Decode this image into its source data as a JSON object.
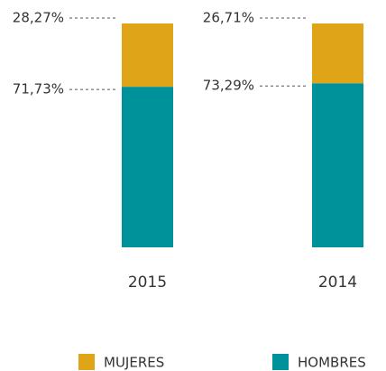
{
  "chart_data": {
    "type": "bar",
    "stacked": true,
    "categories": [
      "2015",
      "2014"
    ],
    "series": [
      {
        "name": "MUJERES",
        "color": "#e0a418",
        "values": [
          28.27,
          26.71
        ],
        "value_labels": [
          "28,27%",
          "26,71%"
        ]
      },
      {
        "name": "HOMBRES",
        "color": "#00929b",
        "values": [
          71.73,
          73.29
        ],
        "value_labels": [
          "71,73%",
          "73,29%"
        ]
      }
    ]
  }
}
